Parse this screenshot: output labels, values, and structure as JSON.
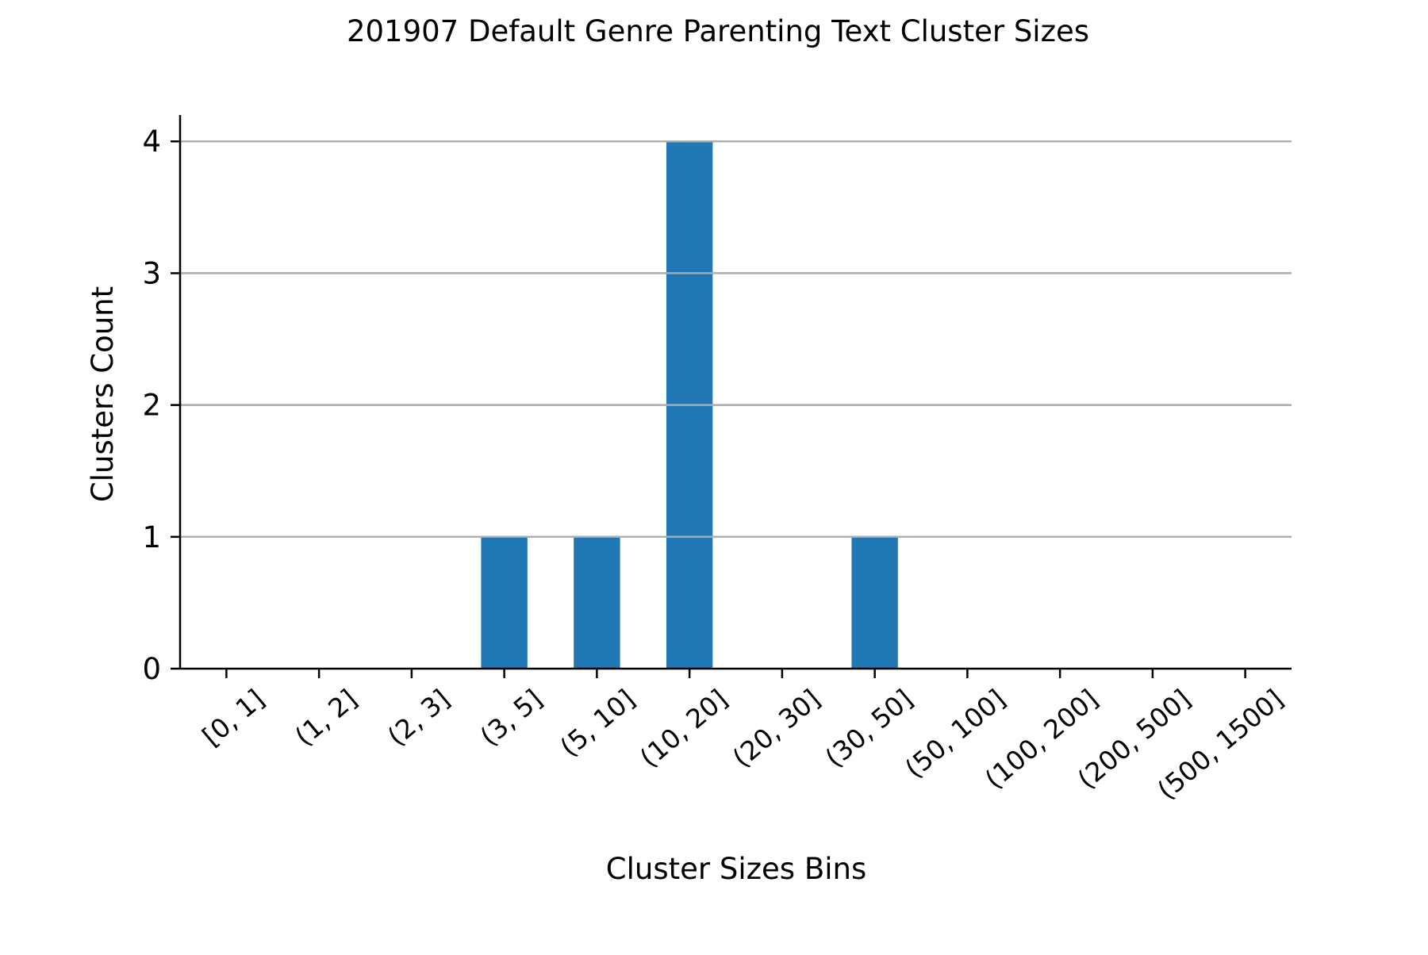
{
  "chart_data": {
    "type": "bar",
    "title": "201907 Default Genre Parenting Text Cluster Sizes",
    "xlabel": "Cluster Sizes Bins",
    "ylabel": "Clusters Count",
    "categories": [
      "[0, 1]",
      "(1, 2]",
      "(2, 3]",
      "(3, 5]",
      "(5, 10]",
      "(10, 20]",
      "(20, 30]",
      "(30, 50]",
      "(50, 100]",
      "(100, 200]",
      "(200, 500]",
      "(500, 1500]"
    ],
    "values": [
      0,
      0,
      0,
      1,
      1,
      4,
      0,
      1,
      0,
      0,
      0,
      0
    ],
    "ylim": [
      0,
      4.2
    ],
    "yticks": [
      0,
      1,
      2,
      3,
      4
    ],
    "grid": "y",
    "bar_color": "#1f77b4",
    "grid_color": "#b0b0b0",
    "axis_color": "#000000"
  }
}
